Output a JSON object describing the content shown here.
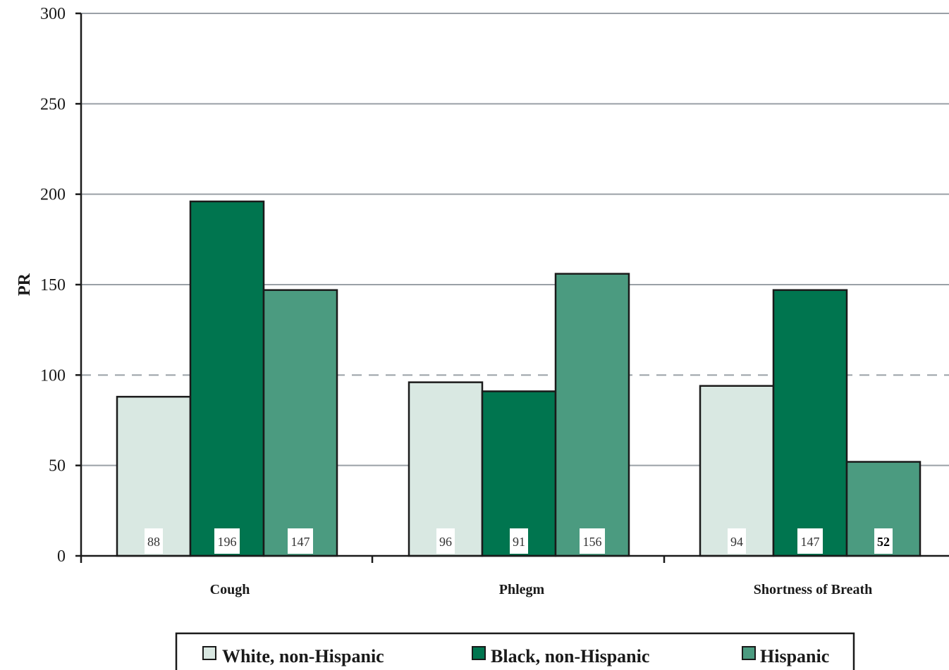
{
  "chart_data": {
    "type": "bar",
    "categories": [
      "Cough",
      "Phlegm",
      "Shortness of Breath"
    ],
    "series": [
      {
        "name": "White, non-Hispanic",
        "values": [
          88,
          96,
          94
        ],
        "color": "#d9e8e2"
      },
      {
        "name": "Black, non-Hispanic",
        "values": [
          196,
          91,
          147
        ],
        "color": "#00754f"
      },
      {
        "name": "Hispanic",
        "values": [
          147,
          156,
          52
        ],
        "color": "#4b9b80"
      }
    ],
    "data_labels": [
      [
        "88",
        "96",
        "94"
      ],
      [
        "196",
        "91",
        "147"
      ],
      [
        "147",
        "156",
        "52"
      ]
    ],
    "bold_labels": [
      [
        2,
        2
      ]
    ],
    "title": "",
    "xlabel": "",
    "ylabel": "PR",
    "ylim": [
      0,
      300
    ],
    "yticks": [
      0,
      50,
      100,
      150,
      200,
      250,
      300
    ],
    "reference_line": 100,
    "grid": true,
    "legend_position": "bottom"
  }
}
